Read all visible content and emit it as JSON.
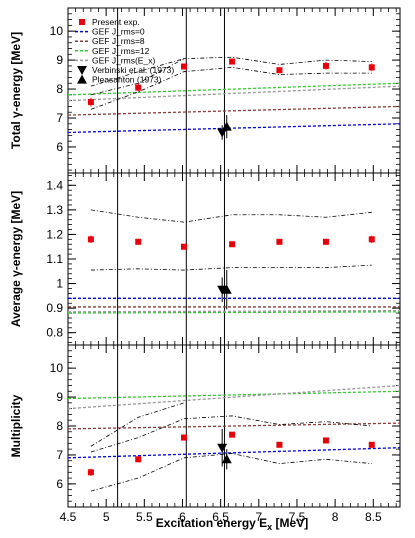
{
  "chart_data": {
    "type": "scatter",
    "xlabel": "Excitation energy E_x [MeV]",
    "xlim": [
      4.5,
      8.85
    ],
    "x_ticks": [
      "4.5",
      "5",
      "5.5",
      "6",
      "6.5",
      "7",
      "7.5",
      "8",
      "8.5"
    ],
    "vlines": [
      5.15,
      6.05,
      6.55
    ],
    "legend": {
      "placement": "top-left of top panel",
      "entries": [
        {
          "label": "Present exp.",
          "marker": "square",
          "color": "#e8000b"
        },
        {
          "label": "GEF J_rms=0",
          "style": "dashed",
          "color": "#0000dd"
        },
        {
          "label": "GEF J_rms=8",
          "style": "dashed",
          "color": "#8b3a3a"
        },
        {
          "label": "GEF J_rms=12",
          "style": "dashed",
          "color": "#33cc33"
        },
        {
          "label": "GEF J_rms(E_x)",
          "style": "dashed",
          "color": "#999999"
        },
        {
          "label": "Verbinski et al. (1973)",
          "marker": "triangle-down",
          "color": "#000000"
        },
        {
          "label": "Pleasanton (1973)",
          "marker": "triangle-up",
          "color": "#000000"
        }
      ]
    },
    "panels": [
      {
        "ylabel": "Total γ-energy [MeV]",
        "ylim": [
          5.1,
          10.8
        ],
        "y_ticks": [
          6,
          7,
          8,
          9,
          10
        ],
        "present": {
          "x": [
            4.8,
            5.42,
            6.02,
            6.65,
            7.27,
            7.88,
            8.48
          ],
          "y": [
            7.55,
            8.05,
            8.78,
            8.95,
            8.65,
            8.8,
            8.75
          ],
          "err": [
            0.15,
            0.13,
            0.1,
            0.1,
            0.1,
            0.13,
            0.13
          ]
        },
        "band_upper": {
          "x": [
            4.8,
            5.42,
            6.02,
            6.65,
            7.27,
            7.88,
            8.48
          ],
          "y": [
            7.8,
            8.2,
            9.05,
            9.1,
            8.85,
            9.0,
            8.95
          ]
        },
        "band_lower": {
          "x": [
            4.8,
            5.42,
            6.02,
            6.65,
            7.27,
            7.88,
            8.48
          ],
          "y": [
            7.3,
            7.9,
            8.6,
            8.75,
            8.5,
            8.55,
            8.55
          ]
        },
        "band_extra": {
          "x": [
            4.8,
            5.42,
            6.02
          ],
          "y": [
            8.1,
            8.6,
            9.05
          ]
        },
        "gef": [
          {
            "name": "GEF J_rms=0",
            "y": [
              6.5,
              6.8
            ]
          },
          {
            "name": "GEF J_rms=8",
            "y": [
              7.1,
              7.4
            ]
          },
          {
            "name": "GEF J_rms=12",
            "y": [
              7.8,
              8.2
            ]
          },
          {
            "name": "GEF J_rms(E_x)",
            "y": [
              7.6,
              8.1
            ]
          }
        ],
        "verbinski": {
          "x": 6.52,
          "y": 6.5,
          "err": 0.25
        },
        "pleasanton": {
          "x": 6.58,
          "y": 6.7,
          "err": 0.4
        }
      },
      {
        "ylabel": "Average γ-energy [MeV]",
        "ylim": [
          0.75,
          1.45
        ],
        "y_ticks": [
          0.8,
          0.9,
          1,
          1.1,
          1.2,
          1.3,
          1.4
        ],
        "present": {
          "x": [
            4.8,
            5.42,
            6.02,
            6.65,
            7.27,
            7.88,
            8.48
          ],
          "y": [
            1.18,
            1.17,
            1.15,
            1.16,
            1.17,
            1.17,
            1.18
          ],
          "err": [
            0.015,
            0.012,
            0.01,
            0.01,
            0.01,
            0.012,
            0.015
          ]
        },
        "band_upper": {
          "x": [
            4.8,
            5.42,
            6.02,
            6.65,
            7.27,
            7.88,
            8.48
          ],
          "y": [
            1.3,
            1.27,
            1.25,
            1.28,
            1.28,
            1.27,
            1.29
          ]
        },
        "band_lower": {
          "x": [
            4.8,
            5.42,
            6.02,
            6.65,
            7.27,
            7.88,
            8.48
          ],
          "y": [
            1.055,
            1.06,
            1.055,
            1.065,
            1.065,
            1.065,
            1.075
          ]
        },
        "gef": [
          {
            "name": "GEF J_rms=0",
            "y": [
              0.94,
              0.94
            ]
          },
          {
            "name": "GEF J_rms=8",
            "y": [
              0.905,
              0.905
            ]
          },
          {
            "name": "GEF J_rms=12",
            "y": [
              0.88,
              0.885
            ]
          },
          {
            "name": "GEF J_rms(E_x)",
            "y": [
              0.885,
              0.89
            ]
          }
        ],
        "verbinski": {
          "x": 6.52,
          "y": 0.975,
          "err": 0.05
        },
        "pleasanton": {
          "x": 6.58,
          "y": 0.975,
          "err": 0.08
        }
      },
      {
        "ylabel": "Multiplicity",
        "ylim": [
          5.2,
          10.8
        ],
        "y_ticks": [
          6,
          7,
          8,
          9,
          10
        ],
        "present": {
          "x": [
            4.8,
            5.42,
            6.02,
            6.65,
            7.27,
            7.88,
            8.48
          ],
          "y": [
            6.4,
            6.85,
            7.6,
            7.7,
            7.35,
            7.5,
            7.35
          ],
          "err": [
            0.12,
            0.1,
            0.08,
            0.08,
            0.08,
            0.1,
            0.1
          ]
        },
        "band_upper": {
          "x": [
            4.8,
            5.42,
            6.02,
            6.65,
            7.27,
            7.88,
            8.48
          ],
          "y": [
            7.1,
            7.6,
            8.25,
            8.35,
            8.05,
            8.15,
            8.0
          ]
        },
        "band_lower": {
          "x": [
            4.8,
            5.42,
            6.02,
            6.65,
            7.27,
            7.88,
            8.48
          ],
          "y": [
            5.75,
            6.2,
            6.9,
            7.05,
            6.7,
            6.85,
            6.7
          ]
        },
        "band_extra": {
          "x": [
            4.8,
            5.42,
            6.02
          ],
          "y": [
            7.3,
            8.3,
            8.8
          ]
        },
        "gef": [
          {
            "name": "GEF J_rms=0",
            "y": [
              6.9,
              7.25
            ]
          },
          {
            "name": "GEF J_rms=8",
            "y": [
              7.9,
              8.1
            ]
          },
          {
            "name": "GEF J_rms=12",
            "y": [
              8.95,
              9.2
            ]
          },
          {
            "name": "GEF J_rms(E_x)",
            "y": [
              8.6,
              9.4
            ]
          }
        ],
        "verbinski": {
          "x": 6.52,
          "y": 7.25,
          "err": 0.65
        },
        "pleasanton": {
          "x": 6.58,
          "y": 6.85,
          "err": 0.35
        }
      }
    ]
  },
  "colors": {
    "present": "#e8000b",
    "gef0": "#0000dd",
    "gef8": "#8b3a3a",
    "gef12": "#33cc33",
    "gefex": "#999999",
    "band": "#000000"
  }
}
